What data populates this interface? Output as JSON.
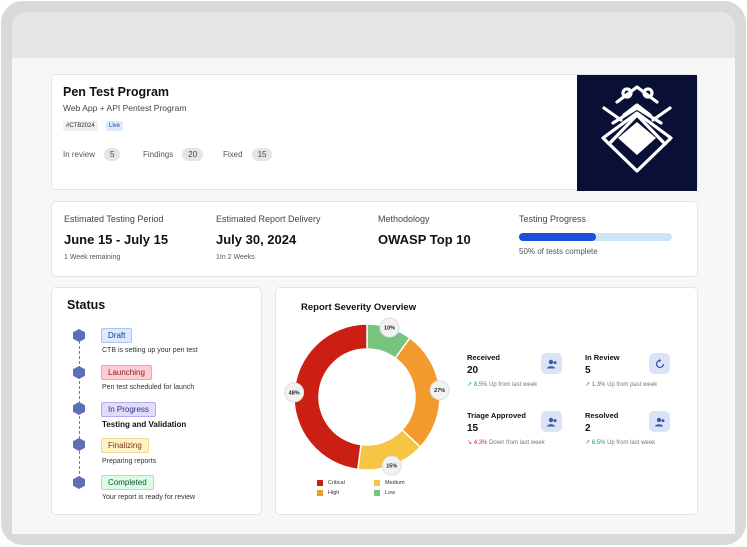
{
  "program": {
    "title": "Pen Test Program",
    "subtitle": "Web App + API Pentest Program",
    "tags": [
      "#CTB2024",
      "Live"
    ],
    "stats": [
      {
        "label": "In review",
        "value": "5"
      },
      {
        "label": "Findings",
        "value": "20"
      },
      {
        "label": "Fixed",
        "value": "15"
      }
    ]
  },
  "info": {
    "period": {
      "label": "Estimated Testing Period",
      "value": "June 15 - July 15",
      "note": "1 Week remaining"
    },
    "delivery": {
      "label": "Estimated Report Delivery",
      "value": "July 30, 2024",
      "note": "1In 2 Weeks"
    },
    "methodology": {
      "label": "Methodology",
      "value": "OWASP Top 10"
    },
    "progress": {
      "label": "Testing Progress",
      "value": 0.5,
      "note": "50% of tests complete"
    }
  },
  "status": {
    "title": "Status",
    "steps": [
      {
        "chip": "Draft",
        "desc": "CTB is setting up your pen test"
      },
      {
        "chip": "Launching",
        "desc": "Pen test scheduled for launch"
      },
      {
        "chip": "In Progress",
        "desc": "Testing and Validation"
      },
      {
        "chip": "Finalizing",
        "desc": "Preparing reports"
      },
      {
        "chip": "Completed",
        "desc": "Your report is ready for review"
      }
    ]
  },
  "severity": {
    "title": "Report Severity Overview",
    "metrics": [
      {
        "label": "Received",
        "value": "20",
        "trend_pct": "8.5%",
        "trend_text": "Up from last week",
        "direction": "up",
        "icon": "users-icon"
      },
      {
        "label": "In Review",
        "value": "5",
        "trend_pct": "1.3%",
        "trend_text": "Up from past week",
        "direction": "up",
        "icon": "refresh-icon"
      },
      {
        "label": "Triage Approved",
        "value": "15",
        "trend_pct": "4.3%",
        "trend_text": "Down from last week",
        "direction": "down",
        "icon": "users-icon"
      },
      {
        "label": "Resolved",
        "value": "2",
        "trend_pct": "8.5%",
        "trend_text": "Up from last week",
        "direction": "up",
        "icon": "users-icon"
      }
    ]
  },
  "chart_data": {
    "type": "pie",
    "variant": "donut",
    "title": "Report Severity Overview",
    "categories": [
      "Critical",
      "High",
      "Medium",
      "Low"
    ],
    "values": [
      48,
      27,
      15,
      10
    ],
    "labels": [
      "48%",
      "27%",
      "15%",
      "10%"
    ],
    "colors": [
      "#cc1f14",
      "#f29a2e",
      "#f6c544",
      "#77c47f"
    ],
    "legend_position": "bottom-left"
  }
}
